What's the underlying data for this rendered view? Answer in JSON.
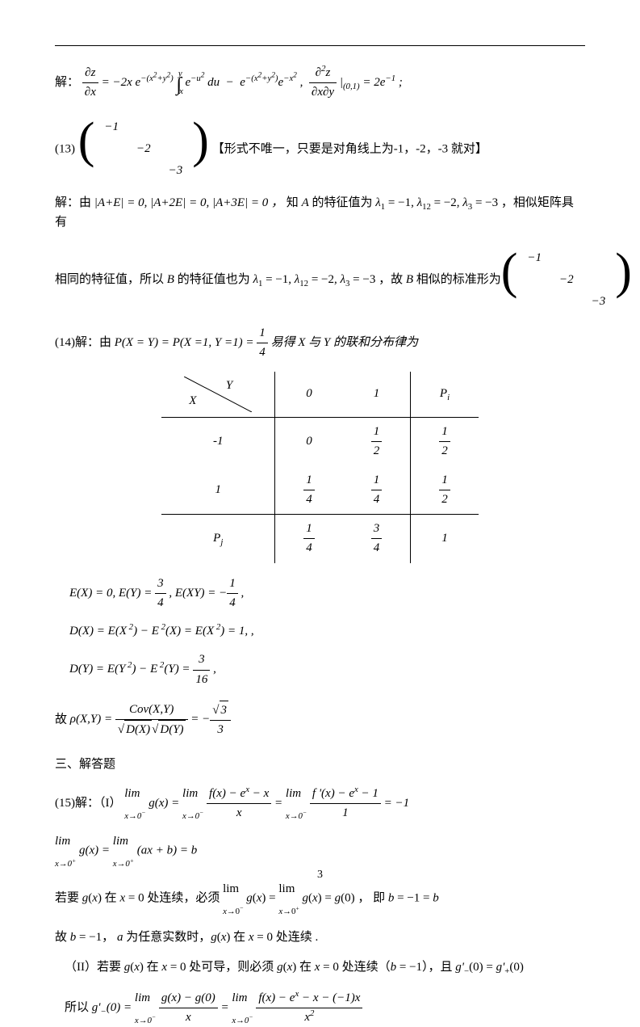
{
  "page_number": "3",
  "line_sol": "解：",
  "eq12_html": "<span class='frac'><span class='n'>&part;<i>z</i></span><span class='d'>&part;<i>x</i></span></span> = &minus;2<i>x e</i><sup>&minus;(<i>x</i><sup>2</sup>+<i>y</i><sup>2</sup>)</sup> <span class='big-int'>&int;</span><sub class='rm' style='vertical-align:-0.9em;margin-left:-3px'><i>x</i></sub><sup class='rm' style='vertical-align:1.1em;margin-left:-6px'><i>y</i></sup> <i>e</i><sup>&minus;<i>u</i><sup>2</sup></sup> <i>du</i> &nbsp;&minus;&nbsp; <i>e</i><sup>&minus;(<i>x</i><sup>2</sup>+<i>y</i><sup>2</sup>)</sup><i>e</i><sup>&minus;<i>x</i><sup>2</sup></sup> , &nbsp;<span class='frac'><span class='n'>&part;<sup>2</sup><i>z</i></span><span class='d'>&part;<i>x</i>&part;<i>y</i></span></span> |<sub>(0,1)</sub> = 2<i>e</i><sup>&minus;1</sup> ;",
  "item13_label": "(13)",
  "item13_matrix": {
    "rows": [
      [
        "−1",
        "",
        ""
      ],
      [
        "",
        "−2",
        ""
      ],
      [
        "",
        "",
        "−3"
      ]
    ]
  },
  "item13_note": "【形式不唯一，只要是对角线上为-1，-2，-3 就对】",
  "sol13_a": "解：由",
  "sol13_eq": "|<i>A</i>+<i>E</i>| = 0, |<i>A</i>+2<i>E</i>| = 0, |<i>A</i>+3<i>E</i>| = 0 ，",
  "sol13_mid1": "知 <i>A</i> 的特征值为 <i>&lambda;</i><sub>1</sub> = &minus;1, <i>&lambda;</i><sub>12</sub> = &minus;2, <i>&lambda;</i><sub>3</sub> = &minus;3 ，相似矩阵具有",
  "sol13_mid2": "相同的特征值，所以 <i>B</i> 的特征值也为 <i>&lambda;</i><sub>1</sub> = &minus;1, <i>&lambda;</i><sub>12</sub> = &minus;2, <i>&lambda;</i><sub>3</sub> = &minus;3 ，故 <i>B</i> 相似的标准形为",
  "item14_pre": "(14)解：由",
  "item14_eq": "<i>P</i>(<i>X</i> = <i>Y</i>) = <i>P</i>(<i>X</i> =1, <i>Y</i> =1) = <span class='frac'><span class='n'>1</span><span class='d'>4</span></span> 易得 X 与 Y 的联和分布律为",
  "table": {
    "col_headers": [
      "0",
      "1",
      "P_i"
    ],
    "rows": [
      {
        "x": "-1",
        "c0": "0",
        "c1": "1/2",
        "p": "1/2"
      },
      {
        "x": "1",
        "c0": "1/4",
        "c1": "1/4",
        "p": "1/2"
      }
    ],
    "footer": {
      "label": "P_j",
      "c0": "1/4",
      "c1": "3/4",
      "p": "1"
    }
  },
  "exy": [
    "<i>E</i>(<i>X</i>) = 0, <i>E</i>(<i>Y</i>) = <span class='frac'><span class='n'>3</span><span class='d'>4</span></span> , <i>E</i>(<i>XY</i>) = &minus;<span class='frac'><span class='n'>1</span><span class='d'>4</span></span> ,",
    "<i>D</i>(<i>X</i>) = <i>E</i>(<i>X</i><sup>&nbsp;2</sup>) &minus; <i>E</i><sup>&nbsp;2</sup>(<i>X</i>) = <i>E</i>(<i>X</i><sup>&nbsp;2</sup>) = 1, ,",
    "<i>D</i>(<i>Y</i>) = <i>E</i>(<i>Y</i><sup>&nbsp;2</sup>) &minus; <i>E</i><sup>&nbsp;2</sup>(<i>Y</i>) = <span class='frac'><span class='n'>3</span><span class='d'>16</span></span> ,"
  ],
  "rho_pre": "故",
  "rho_html": "&rho;(<i>X</i>,<i>Y</i>) = <span class='frac'><span class='n'><i>Cov</i>(<i>X</i>,<i>Y</i>)</span><span class='d'><span class='rad'>&radic;</span><span class='sqrt'><i>D</i>(<i>X</i>)</span><span class='rad'>&radic;</span><span class='sqrt'><i>D</i>(<i>Y</i>)</span></span></span> = &minus;<span class='frac'><span class='n'><span class='rad'>&radic;</span><span class='sqrt'>3</span></span><span class='d'>3</span></span>",
  "section3": "三、解答题",
  "q15_lhs": "(15)解：（I）",
  "q15_eq1": "<span class='il'>lim<br><sub><i>x</i>&rarr;0<sup>&minus;</sup></sub></span> <i>g</i>(<i>x</i>) = <span class='il'>lim<br><sub><i>x</i>&rarr;0<sup>&minus;</sup></sub></span> <span class='frac'><span class='n'><i>f</i>(<i>x</i>) &minus; <i>e</i><sup><i>x</i></sup> &minus; <i>x</i></span><span class='d'><i>x</i></span></span> = <span class='il'>lim<br><sub><i>x</i>&rarr;0<sup>&minus;</sup></sub></span> <span class='frac'><span class='n'><i>f</i>&nbsp;'(<i>x</i>) &minus; <i>e</i><sup><i>x</i></sup> &minus; 1</span><span class='d'>1</span></span> = &minus;1",
  "q15_eq2": "<span class='il'>lim<br><sub><i>x</i>&rarr;0<sup>+</sup></sub></span> <i>g</i>(<i>x</i>) = <span class='il'>lim<br><sub><i>x</i>&rarr;0<sup>+</sup></sub></span> (<i>ax</i> + <i>b</i>) = <i>b</i>",
  "q15_t1": "若要 <i>g</i>(<i>x</i>) 在 <i>x</i> = 0 处连续，必须 <span class='il'>lim<br><sub><i>x</i>&rarr;0<sup>&minus;</sup></sub></span> <i>g</i>(<i>x</i>) = <span class='il'>lim<br><sub><i>x</i>&rarr;0<sup>+</sup></sub></span> <i>g</i>(<i>x</i>) = <i>g</i>(0) ，&nbsp;即 <i>b</i> = &minus;1 = <i>b</i>",
  "q15_t2": "故 <i>b</i> = &minus;1， <i>a</i> 为任意实数时，<i>g</i>(<i>x</i>) 在 <i>x</i> = 0 处连续 .",
  "q15_II": "（II）若要 <i>g</i>(<i>x</i>) 在 <i>x</i> = 0 处可导，则必须 <i>g</i>(<i>x</i>) 在 <i>x</i> = 0 处连续（<i>b</i> = &minus;1），且 <i>g'</i><sub>&minus;</sub>(0) = <i>g'</i><sub>+</sub>(0)",
  "q15_eq3_pre": "所以 ",
  "q15_eq3": "<i>g'</i><sub>&minus;</sub>(0) = <span class='il'>lim<br><sub><i>x</i>&rarr;0<sup>&minus;</sup></sub></span> <span class='frac'><span class='n'><i>g</i>(<i>x</i>) &minus; <i>g</i>(0)</span><span class='d'><i>x</i></span></span> = <span class='il'>lim<br><sub><i>x</i>&rarr;0<sup>&minus;</sup></sub></span> <span class='frac'><span class='n'><i>f</i>(<i>x</i>) &minus; <i>e</i><sup><i>x</i></sup> &minus; <i>x</i> &minus; (&minus;1)<i>x</i></span><span class='d'><i>x</i><sup>2</sup></span></span>",
  "colors": {
    "text": "#000000",
    "bg": "#ffffff",
    "rule": "#000000"
  }
}
